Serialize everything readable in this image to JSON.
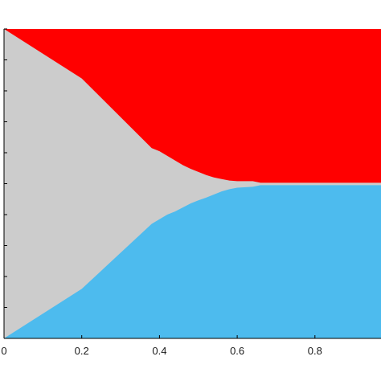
{
  "chart_data": {
    "type": "area",
    "title": "",
    "xlabel": "",
    "ylabel": "",
    "xlim": [
      0,
      0.97
    ],
    "ylim": [
      0,
      1
    ],
    "grid": false,
    "x_ticks": [
      0,
      0.2,
      0.4,
      0.6,
      0.8
    ],
    "x_tick_labels": [
      "0",
      "0.2",
      "0.4",
      "0.6",
      "0.8"
    ],
    "y_ticks": [
      0,
      0.1,
      0.2,
      0.3,
      0.4,
      0.5,
      0.6,
      0.7,
      0.8,
      0.9,
      1.0
    ],
    "y_tick_labels": [],
    "regions": [
      {
        "color": "#ff0000",
        "upper_boundary": "top",
        "lower_boundary": [
          [
            0,
            1.0
          ],
          [
            0.2,
            0.84
          ],
          [
            0.38,
            0.615
          ],
          [
            0.4,
            0.605
          ],
          [
            0.42,
            0.59
          ],
          [
            0.44,
            0.575
          ],
          [
            0.46,
            0.56
          ],
          [
            0.48,
            0.548
          ],
          [
            0.5,
            0.538
          ],
          [
            0.52,
            0.528
          ],
          [
            0.54,
            0.52
          ],
          [
            0.56,
            0.515
          ],
          [
            0.58,
            0.51
          ],
          [
            0.6,
            0.508
          ],
          [
            0.64,
            0.508
          ],
          [
            0.66,
            0.503
          ],
          [
            0.68,
            0.503
          ],
          [
            0.97,
            0.503
          ]
        ]
      },
      {
        "color": "#cccccc",
        "upper_boundary": "red",
        "lower_boundary": "blue"
      },
      {
        "color": "#4dbbee",
        "upper_boundary": [
          [
            0,
            0.0
          ],
          [
            0.2,
            0.16
          ],
          [
            0.38,
            0.37
          ],
          [
            0.4,
            0.385
          ],
          [
            0.42,
            0.4
          ],
          [
            0.44,
            0.41
          ],
          [
            0.46,
            0.423
          ],
          [
            0.48,
            0.436
          ],
          [
            0.5,
            0.446
          ],
          [
            0.52,
            0.455
          ],
          [
            0.54,
            0.465
          ],
          [
            0.56,
            0.475
          ],
          [
            0.58,
            0.482
          ],
          [
            0.6,
            0.487
          ],
          [
            0.64,
            0.49
          ],
          [
            0.66,
            0.495
          ],
          [
            0.68,
            0.495
          ],
          [
            0.97,
            0.495
          ]
        ],
        "lower_boundary": "bottom"
      }
    ]
  }
}
